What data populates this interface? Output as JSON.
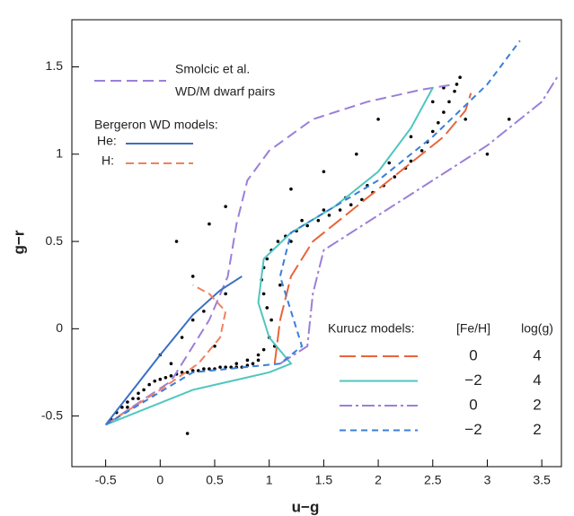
{
  "chart_data": {
    "type": "scatter",
    "xlabel": "u−g",
    "ylabel": "g−r",
    "xlim": [
      -0.81,
      3.68
    ],
    "ylim": [
      -0.79,
      1.77
    ],
    "xticks": [
      -0.5,
      0,
      0.5,
      1,
      1.5,
      2,
      2.5,
      3,
      3.5
    ],
    "yticks": [
      -0.5,
      0,
      0.5,
      1,
      1.5
    ],
    "point_color": "#000000",
    "points": {
      "x": [
        -0.45,
        -0.4,
        -0.35,
        -0.3,
        -0.25,
        -0.2,
        -0.15,
        -0.1,
        -0.05,
        0.0,
        0.05,
        0.1,
        0.15,
        0.2,
        0.25,
        0.3,
        0.35,
        0.4,
        0.45,
        0.5,
        0.55,
        0.6,
        0.65,
        0.7,
        0.75,
        0.8,
        0.85,
        0.9,
        0.95,
        1.0,
        1.02,
        0.98,
        0.95,
        0.93,
        0.95,
        0.98,
        1.02,
        1.08,
        1.15,
        1.25,
        1.35,
        1.45,
        1.55,
        1.65,
        1.75,
        1.85,
        1.95,
        2.05,
        2.15,
        2.25,
        2.3,
        2.4,
        2.45,
        2.5,
        2.55,
        2.6,
        2.65,
        2.7,
        2.72,
        2.75,
        2.6,
        2.5,
        2.3,
        2.1,
        1.9,
        1.7,
        1.5,
        1.3,
        1.2,
        1.1,
        1.05,
        0.9,
        0.8,
        0.7,
        0.5,
        0.3,
        0.2,
        0.1,
        0.0,
        -0.2,
        -0.3,
        0.4,
        0.6,
        0.3,
        0.15,
        1.5,
        2.0,
        2.8,
        3.0,
        3.2,
        1.8,
        1.2,
        0.6,
        0.45,
        0.25
      ],
      "y": [
        -0.52,
        -0.48,
        -0.45,
        -0.42,
        -0.4,
        -0.37,
        -0.35,
        -0.32,
        -0.3,
        -0.29,
        -0.28,
        -0.27,
        -0.26,
        -0.25,
        -0.25,
        -0.24,
        -0.24,
        -0.23,
        -0.23,
        -0.23,
        -0.22,
        -0.22,
        -0.22,
        -0.22,
        -0.22,
        -0.21,
        -0.2,
        -0.18,
        -0.12,
        -0.05,
        0.05,
        0.12,
        0.2,
        0.28,
        0.35,
        0.4,
        0.45,
        0.5,
        0.53,
        0.56,
        0.59,
        0.62,
        0.65,
        0.68,
        0.71,
        0.74,
        0.78,
        0.82,
        0.87,
        0.92,
        0.96,
        1.02,
        1.07,
        1.13,
        1.18,
        1.24,
        1.3,
        1.36,
        1.4,
        1.44,
        1.38,
        1.3,
        1.1,
        0.95,
        0.82,
        0.75,
        0.68,
        0.62,
        0.5,
        0.25,
        -0.1,
        -0.15,
        -0.18,
        -0.2,
        -0.1,
        0.05,
        -0.05,
        -0.2,
        -0.15,
        -0.4,
        -0.45,
        0.1,
        0.2,
        0.3,
        0.5,
        0.9,
        1.2,
        1.2,
        1.0,
        1.2,
        1.0,
        0.8,
        0.7,
        0.6,
        -0.6
      ]
    },
    "legend": {
      "smolcic": [
        "Smolcic et al.",
        "WD/M dwarf pairs"
      ],
      "bergeron_title": "Bergeron WD models:",
      "kurucz_title": "Kurucz models:",
      "feh_header": "[Fe/H]",
      "logg_header": "log(g)"
    },
    "series": [
      {
        "name": "Smolcic et al.",
        "color": "#9b7fd9",
        "dash": "12 6",
        "x": [
          -0.5,
          0.1,
          0.45,
          0.62,
          0.7,
          0.8,
          1.0,
          1.4,
          1.9,
          2.4,
          2.7
        ],
        "y": [
          -0.55,
          -0.3,
          0.05,
          0.3,
          0.6,
          0.85,
          1.02,
          1.2,
          1.3,
          1.37,
          1.4
        ]
      },
      {
        "name": "He:",
        "color": "#3a6fc4",
        "dash": "none",
        "x": [
          -0.5,
          0.0,
          0.3,
          0.55,
          0.75
        ],
        "y": [
          -0.55,
          -0.15,
          0.08,
          0.22,
          0.3
        ]
      },
      {
        "name": "H:",
        "color": "#f08060",
        "dash": "9 5",
        "x": [
          -0.5,
          0.0,
          0.35,
          0.55,
          0.6,
          0.45,
          0.3
        ],
        "y": [
          -0.55,
          -0.35,
          -0.2,
          -0.05,
          0.1,
          0.2,
          0.25
        ]
      },
      {
        "feh": "0",
        "logg": "4",
        "color": "#e8653a",
        "dash": "18 6",
        "x": [
          1.05,
          1.1,
          1.2,
          1.4,
          1.8,
          2.2,
          2.6,
          2.8,
          2.85
        ],
        "y": [
          -0.2,
          0.05,
          0.3,
          0.5,
          0.7,
          0.9,
          1.1,
          1.25,
          1.35
        ]
      },
      {
        "feh": "−2",
        "logg": "4",
        "color": "#4fc6c0",
        "dash": "none",
        "x": [
          -0.5,
          0.3,
          1.0,
          1.2,
          1.0,
          0.9,
          0.95,
          1.2,
          1.6,
          2.0,
          2.3,
          2.5
        ],
        "y": [
          -0.55,
          -0.35,
          -0.25,
          -0.2,
          -0.05,
          0.15,
          0.4,
          0.55,
          0.7,
          0.9,
          1.15,
          1.38
        ]
      },
      {
        "feh": "0",
        "logg": "2",
        "color": "#9b7fd9",
        "dash": "14 4 3 4",
        "x": [
          1.1,
          1.35,
          1.4,
          1.5,
          2.0,
          2.5,
          3.0,
          3.5,
          3.65
        ],
        "y": [
          -0.2,
          -0.1,
          0.2,
          0.45,
          0.65,
          0.85,
          1.05,
          1.3,
          1.45
        ]
      },
      {
        "feh": "−2",
        "logg": "2",
        "color": "#3a7fd9",
        "dash": "7 5",
        "x": [
          -0.5,
          0.3,
          1.1,
          1.3,
          1.1,
          1.2,
          1.6,
          2.0,
          2.5,
          3.0,
          3.3
        ],
        "y": [
          -0.55,
          -0.25,
          -0.2,
          -0.1,
          0.3,
          0.55,
          0.7,
          0.85,
          1.1,
          1.4,
          1.65
        ]
      }
    ]
  }
}
